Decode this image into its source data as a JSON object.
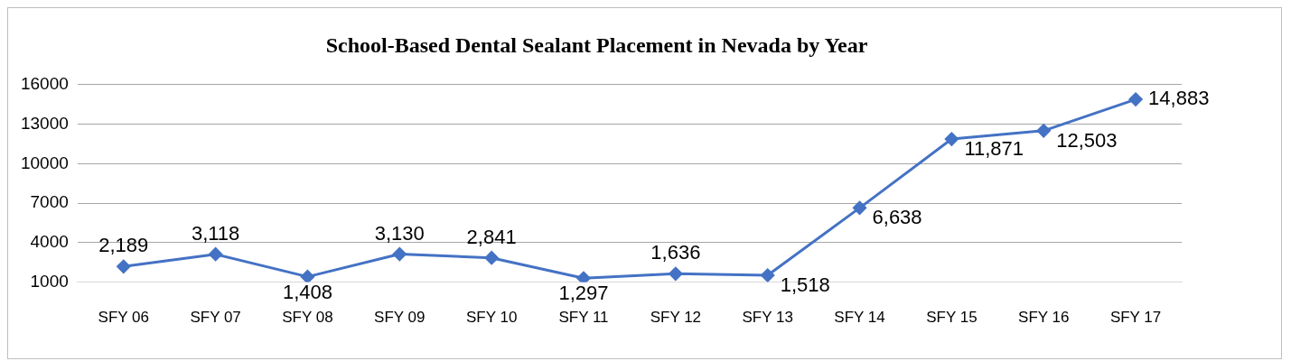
{
  "chart_data": {
    "type": "line",
    "title": "School-Based Dental Sealant Placement in Nevada by Year",
    "categories": [
      "SFY 06",
      "SFY 07",
      "SFY 08",
      "SFY 09",
      "SFY 10",
      "SFY 11",
      "SFY 12",
      "SFY 13",
      "SFY 14",
      "SFY 15",
      "SFY 16",
      "SFY 17"
    ],
    "series": [
      {
        "color": "#4472c4",
        "values": [
          2189,
          3118,
          1408,
          3130,
          2841,
          1297,
          1636,
          1518,
          6638,
          11871,
          12503,
          14883
        ],
        "value_labels": [
          "2,189",
          "3,118",
          "1,408",
          "3,130",
          "2,841",
          "1,297",
          "1,636",
          "1,518",
          "6,638",
          "11,871",
          "12,503",
          "14,883"
        ]
      }
    ],
    "ylim": [
      1000,
      16000
    ],
    "yticks": [
      1000,
      4000,
      7000,
      10000,
      13000,
      16000
    ],
    "grid": "y",
    "legend": false,
    "marker": "diamond",
    "line_style": "solid"
  }
}
